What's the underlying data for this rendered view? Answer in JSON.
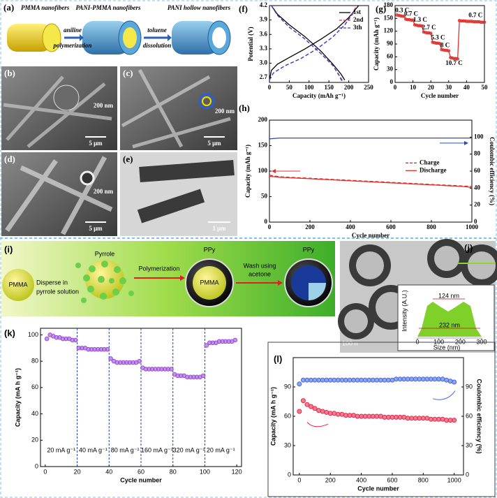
{
  "figure": {
    "a": {
      "label": "(a)",
      "stages": [
        "PMMA nanofibers",
        "PANI-PMMA nanofibers",
        "PANI hollow nanofibers"
      ],
      "steps": [
        [
          "aniline",
          "polymerization"
        ],
        [
          "toluene",
          "dissolution"
        ]
      ]
    },
    "b": {
      "label": "(b)",
      "inset_scale": "200 nm",
      "scale": "5 μm"
    },
    "c": {
      "label": "(c)",
      "inset_scale": "200 nm",
      "scale": "5 μm"
    },
    "d": {
      "label": "(d)",
      "inset_scale": "200 nm",
      "scale": "5 μm"
    },
    "e": {
      "label": "(e)",
      "scale": "1 μm"
    },
    "i": {
      "label": "(i)",
      "core": "PMMA",
      "step1": [
        "Disperse in",
        "pyrrole solution"
      ],
      "monomer": "Pyrrole",
      "step2": "Polymerization",
      "shell1": "PPy",
      "core2": "PMMA",
      "step3": [
        "Wash using",
        "acetone"
      ],
      "shell2": "PPy"
    },
    "j": {
      "label": "(j)",
      "scale": "100 n",
      "inset": {
        "ylabel": "Intensity (A.U.)",
        "xlabel": "Size (nm)",
        "xlim": [
          0,
          300
        ],
        "xticks": [
          0,
          100,
          200,
          300
        ],
        "inner": "124 nm",
        "outer": "232 nm"
      }
    }
  },
  "chart_data": [
    {
      "type": "line",
      "label": "(f)",
      "xlabel": "Capacity (mAh g⁻¹)",
      "ylabel": "Potential (V)",
      "xlim": [
        0,
        250
      ],
      "ylim": [
        2.6,
        4.2
      ],
      "xticks": [
        0,
        50,
        100,
        150,
        200,
        250
      ],
      "yticks": [
        2.7,
        {
          "value": 3,
          "label": "3.0"
        },
        3.3,
        3.6,
        3.9,
        4.2
      ],
      "legend": "upper right",
      "series": [
        {
          "name": "1st",
          "color": "#000000",
          "dashed": false,
          "x": [
            0,
            5,
            20,
            50,
            90,
            130,
            170,
            200,
            215,
            225,
            null,
            5,
            20,
            50,
            90,
            130,
            160,
            180,
            190
          ],
          "values": [
            2.65,
            2.85,
            2.98,
            3.12,
            3.3,
            3.5,
            3.72,
            3.95,
            4.1,
            4.2,
            null,
            4.2,
            4.02,
            3.8,
            3.55,
            3.25,
            2.98,
            2.78,
            2.65
          ]
        },
        {
          "name": "2nd",
          "color": "#d6305a",
          "dashed": true,
          "x": [
            0,
            10,
            40,
            80,
            120,
            160,
            190,
            210,
            220,
            null,
            5,
            20,
            50,
            90,
            130,
            160,
            175,
            183
          ],
          "values": [
            2.65,
            2.8,
            2.95,
            3.1,
            3.3,
            3.55,
            3.8,
            4.05,
            4.2,
            null,
            4.2,
            4.0,
            3.75,
            3.5,
            3.2,
            2.95,
            2.75,
            2.62
          ]
        },
        {
          "name": "3th",
          "color": "#3a3ad0",
          "dashed": true,
          "x": [
            0,
            10,
            40,
            80,
            120,
            160,
            190,
            212,
            222,
            null,
            5,
            20,
            50,
            90,
            130,
            160,
            176,
            185
          ],
          "values": [
            2.65,
            2.8,
            2.95,
            3.1,
            3.3,
            3.55,
            3.8,
            4.05,
            4.2,
            null,
            4.2,
            4.0,
            3.75,
            3.5,
            3.2,
            2.95,
            2.75,
            2.62
          ]
        }
      ]
    },
    {
      "type": "line",
      "label": "(g)",
      "markers": true,
      "xlabel": "Cycle number",
      "ylabel": "Capacity (mAh g⁻¹)",
      "xlim": [
        0,
        50
      ],
      "ylim": [
        0,
        180
      ],
      "xticks": [
        0,
        10,
        20,
        30,
        40,
        50
      ],
      "yticks": [
        0,
        30,
        60,
        90,
        120,
        150,
        180
      ],
      "annotations": [
        "0.3 C",
        "0.7 C",
        "1.3 C",
        "2.7 C",
        "5.3 C",
        "8 C",
        "10.7 C",
        "0.7 C"
      ],
      "x": [
        1,
        2,
        3,
        4,
        5,
        6,
        7,
        8,
        9,
        10,
        11,
        12,
        13,
        14,
        15,
        16,
        17,
        18,
        19,
        20,
        21,
        22,
        23,
        24,
        25,
        26,
        27,
        28,
        29,
        30,
        31,
        32,
        33,
        34,
        35,
        36,
        37,
        38,
        39,
        40,
        41,
        42,
        43,
        44,
        45,
        46,
        47,
        48,
        49,
        50
      ],
      "series": [
        {
          "color": "#e0312b",
          "values": [
            158,
            157,
            156,
            155,
            155,
            148,
            147,
            147,
            146,
            146,
            135,
            134,
            133,
            133,
            132,
            118,
            117,
            116,
            116,
            115,
            94,
            93,
            92,
            92,
            91,
            77,
            76,
            75,
            75,
            74,
            58,
            57,
            56,
            56,
            55,
            145,
            144,
            144,
            144,
            143,
            143,
            143,
            143,
            142,
            142,
            142,
            142,
            141,
            141,
            141
          ]
        }
      ]
    },
    {
      "type": "line",
      "label": "(h)",
      "xlabel": "Cycle number",
      "ylabel": "Capacity (mAh g⁻¹)",
      "y2label": "Coulombic efficiency (%)",
      "xlim": [
        0,
        1000
      ],
      "ylim": [
        0,
        200
      ],
      "y2lim": [
        0,
        120
      ],
      "xticks": [
        0,
        200,
        400,
        600,
        800,
        1000
      ],
      "yticks": [
        0,
        50,
        100,
        150,
        200
      ],
      "y2ticks": [
        0,
        20,
        40,
        60,
        80,
        100
      ],
      "legend": "right",
      "x": [
        0,
        50,
        100,
        150,
        200,
        250,
        300,
        350,
        400,
        450,
        500,
        550,
        600,
        650,
        700,
        750,
        800,
        850,
        900,
        950,
        1000
      ],
      "series": [
        {
          "name": "Charge",
          "color": "#e0312b",
          "dashed": true,
          "values": [
            92,
            89,
            88,
            87,
            86,
            85,
            84,
            83,
            82,
            81,
            80,
            79,
            78,
            77,
            76,
            75,
            74,
            73,
            72,
            71,
            70
          ]
        },
        {
          "name": "Discharge",
          "color": "#e0312b",
          "dashed": false,
          "values": [
            90,
            88,
            87,
            86,
            85,
            84,
            83,
            82,
            81,
            80,
            79,
            78,
            77,
            76,
            75,
            74,
            73,
            72,
            71,
            70,
            68
          ]
        },
        {
          "color": "#2f4fa8",
          "axis": "y2",
          "dashed": false,
          "values": [
            98,
            99,
            99,
            99,
            99,
            99,
            99,
            99,
            99,
            99,
            99,
            99,
            99,
            99,
            99,
            99,
            99,
            99,
            99,
            99,
            99
          ]
        }
      ]
    },
    {
      "type": "scatter",
      "label": "(k)",
      "xlabel": "Cycle number",
      "ylabel": "Capacity (mA h g⁻¹)",
      "xlim": [
        -3,
        123
      ],
      "ylim": [
        0,
        105
      ],
      "xticks": [
        0,
        20,
        40,
        60,
        80,
        100,
        120
      ],
      "yticks": [
        0,
        20,
        40,
        60,
        80,
        100
      ],
      "annotations": [
        "20 mA g⁻¹",
        "40 mA g⁻¹",
        "80 mA g⁻¹",
        "160 mA g⁻¹",
        "320 mA g⁻¹",
        "20 mA g⁻¹"
      ],
      "x": [
        1,
        3,
        5,
        7,
        9,
        11,
        13,
        15,
        17,
        19,
        21,
        23,
        25,
        27,
        29,
        31,
        33,
        35,
        37,
        39,
        41,
        43,
        45,
        47,
        49,
        51,
        53,
        55,
        57,
        59,
        61,
        63,
        65,
        67,
        69,
        71,
        73,
        75,
        77,
        79,
        81,
        83,
        85,
        87,
        89,
        91,
        93,
        95,
        97,
        99,
        101,
        103,
        105,
        107,
        109,
        111,
        113,
        115,
        117,
        119
      ],
      "series": [
        {
          "color": "#9b4fd6",
          "values": [
            97,
            100,
            99,
            98,
            98,
            97,
            97,
            97,
            96,
            96,
            90,
            90,
            90,
            89,
            89,
            89,
            89,
            89,
            89,
            89,
            82,
            80,
            79,
            79,
            79,
            79,
            79,
            79,
            79,
            80,
            75,
            74,
            74,
            74,
            74,
            74,
            74,
            74,
            74,
            74,
            70,
            69,
            69,
            69,
            68,
            68,
            68,
            68,
            68,
            69,
            92,
            94,
            94,
            94,
            95,
            95,
            95,
            95,
            95,
            96
          ]
        }
      ]
    },
    {
      "type": "scatter",
      "label": "(l)",
      "xlabel": "Cycle number",
      "ylabel": "Capacity (mA h g⁻¹)",
      "y2label": "Coulombic efficiency (%)",
      "xlim": [
        -40,
        1060
      ],
      "ylim": [
        0,
        120
      ],
      "y2lim": [
        0,
        120
      ],
      "xticks": [
        0,
        200,
        400,
        600,
        800,
        1000
      ],
      "yticks": [
        0,
        30,
        60,
        90
      ],
      "y2ticks": [
        0,
        30,
        60,
        90
      ],
      "x": [
        0,
        25,
        50,
        75,
        100,
        125,
        150,
        175,
        200,
        225,
        250,
        275,
        300,
        325,
        350,
        375,
        400,
        425,
        450,
        475,
        500,
        525,
        550,
        575,
        600,
        625,
        650,
        675,
        700,
        725,
        750,
        775,
        800,
        825,
        850,
        875,
        900,
        925,
        950,
        975,
        1000
      ],
      "series": [
        {
          "color": "#e8264a",
          "values": [
            65,
            76,
            72,
            70,
            68,
            66,
            65,
            64,
            63,
            63,
            62,
            62,
            61,
            61,
            61,
            60,
            60,
            60,
            60,
            60,
            60,
            60,
            59,
            59,
            59,
            59,
            59,
            59,
            58,
            58,
            58,
            58,
            58,
            58,
            57,
            57,
            57,
            57,
            56,
            56,
            56
          ]
        },
        {
          "color": "#4169e1",
          "axis": "y2",
          "values": [
            93,
            97,
            97,
            97,
            97,
            97,
            97,
            97,
            97,
            97,
            97,
            97,
            97,
            97,
            97,
            97,
            97,
            97,
            97,
            97,
            97,
            97,
            97,
            97,
            97,
            98,
            98,
            98,
            98,
            98,
            98,
            98,
            98,
            98,
            98,
            98,
            98,
            98,
            97,
            96,
            95
          ]
        }
      ]
    }
  ]
}
